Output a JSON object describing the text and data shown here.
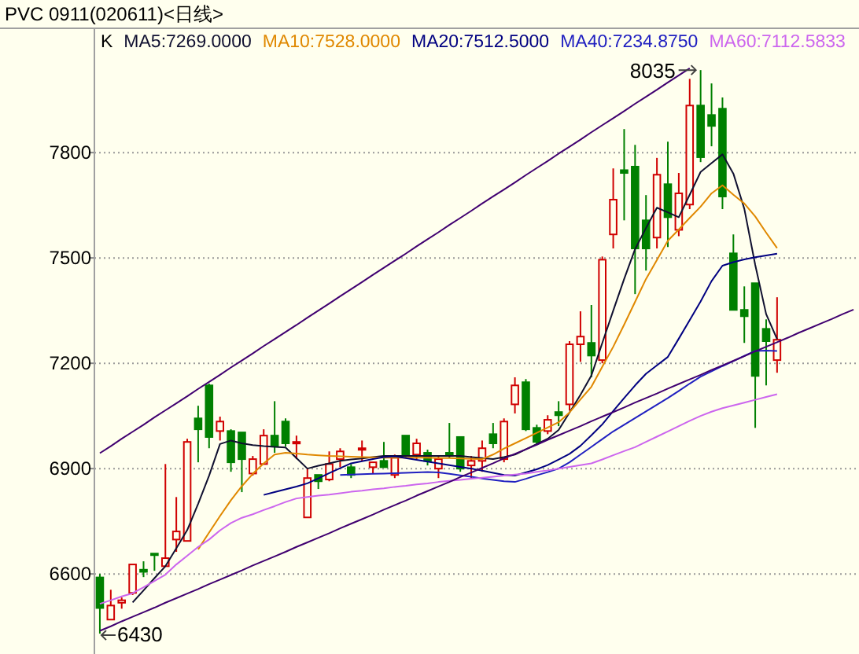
{
  "chart_data": {
    "type": "candlestick",
    "title": "PVC 0911(020611)<日线>",
    "categories": [
      null,
      null,
      null,
      null,
      null,
      null,
      null,
      null,
      null,
      null,
      null,
      null,
      null,
      null,
      null,
      null,
      null,
      null,
      null,
      null,
      null,
      null,
      null,
      null,
      null,
      null,
      null,
      null,
      null,
      null,
      null,
      null,
      null,
      null,
      null,
      null,
      null,
      null,
      null,
      null,
      null,
      null,
      null,
      null,
      null,
      null,
      null,
      null,
      null,
      null,
      null,
      null,
      null,
      null,
      null,
      null,
      null,
      null,
      null,
      null,
      null,
      null,
      null,
      null,
      null,
      null,
      null,
      null,
      null,
      null
    ],
    "series": [
      {
        "ohlc": [
          [
            6590,
            6600,
            6430,
            6503
          ],
          [
            6470,
            6555,
            6466,
            6510
          ],
          [
            6518,
            6533,
            6501,
            6525
          ],
          [
            6546,
            6627,
            6540,
            6627
          ],
          [
            6612,
            6636,
            6591,
            6606
          ],
          [
            6658,
            6660,
            6609,
            6654
          ],
          [
            6622,
            6913,
            6618,
            6645
          ],
          [
            6698,
            6819,
            6663,
            6721
          ],
          [
            6694,
            6985,
            6690,
            6976
          ],
          [
            7043,
            7079,
            6918,
            7012
          ],
          [
            7137,
            7142,
            6958,
            6990
          ],
          [
            7007,
            7048,
            6980,
            7034
          ],
          [
            7007,
            7012,
            6891,
            6918
          ],
          [
            7003,
            7003,
            6833,
            6927
          ],
          [
            6886,
            6936,
            6880,
            6927
          ],
          [
            6913,
            7012,
            6909,
            6994
          ],
          [
            6994,
            7092,
            6945,
            6963
          ],
          [
            7034,
            7043,
            6963,
            6972
          ],
          [
            6972,
            6994,
            6927,
            6976
          ],
          [
            6761,
            6900,
            6761,
            6873
          ],
          [
            6882,
            6886,
            6842,
            6864
          ],
          [
            6869,
            6949,
            6864,
            6913
          ],
          [
            6927,
            6958,
            6904,
            6949
          ],
          [
            6904,
            6913,
            6873,
            6882
          ],
          [
            6954,
            6980,
            6922,
            6958
          ],
          [
            6904,
            6922,
            6886,
            6918
          ],
          [
            6922,
            6976,
            6900,
            6904
          ],
          [
            6882,
            6940,
            6873,
            6931
          ],
          [
            6994,
            6998,
            6931,
            6940
          ],
          [
            6940,
            6985,
            6927,
            6972
          ],
          [
            6945,
            6954,
            6909,
            6922
          ],
          [
            6900,
            6936,
            6873,
            6927
          ],
          [
            6945,
            7030,
            6931,
            6936
          ],
          [
            6990,
            6990,
            6891,
            6900
          ],
          [
            6909,
            6936,
            6873,
            6922
          ],
          [
            6922,
            6980,
            6891,
            6958
          ],
          [
            6998,
            7030,
            6958,
            6972
          ],
          [
            6927,
            7043,
            6918,
            7034
          ],
          [
            7083,
            7160,
            7057,
            7137
          ],
          [
            7146,
            7155,
            7007,
            7012
          ],
          [
            7016,
            7025,
            6967,
            6976
          ],
          [
            7007,
            7052,
            6998,
            7039
          ],
          [
            7061,
            7092,
            7021,
            7052
          ],
          [
            7083,
            7263,
            7065,
            7254
          ],
          [
            7254,
            7348,
            7204,
            7276
          ],
          [
            7258,
            7366,
            7160,
            7222
          ],
          [
            7209,
            7504,
            7200,
            7495
          ],
          [
            7567,
            7755,
            7527,
            7666
          ],
          [
            7750,
            7867,
            7607,
            7742
          ],
          [
            7760,
            7822,
            7397,
            7527
          ],
          [
            7607,
            7679,
            7464,
            7527
          ],
          [
            7558,
            7785,
            7527,
            7737
          ],
          [
            7710,
            7831,
            7531,
            7616
          ],
          [
            7580,
            7742,
            7562,
            7684
          ],
          [
            7652,
            8010,
            7639,
            7934
          ],
          [
            7934,
            8035,
            7773,
            7787
          ],
          [
            7907,
            7997,
            7818,
            7876
          ],
          [
            7925,
            7957,
            7639,
            7675
          ],
          [
            7513,
            7567,
            7348,
            7352
          ],
          [
            7352,
            7419,
            7258,
            7334
          ],
          [
            7428,
            7428,
            7016,
            7164
          ],
          [
            7298,
            7325,
            7137,
            7263
          ],
          [
            7209,
            7388,
            7173,
            7267
          ],
          null,
          null,
          null,
          null,
          null,
          null,
          null
        ],
        "colors": [
          "#008000",
          "#d00000",
          "#d00000",
          "#d00000",
          "#008000",
          "#008000",
          "#d00000",
          "#d00000",
          "#d00000",
          "#008000",
          "#008000",
          "#d00000",
          "#008000",
          "#008000",
          "#d00000",
          "#d00000",
          "#008000",
          "#008000",
          "#d00000",
          "#d00000",
          "#008000",
          "#d00000",
          "#d00000",
          "#008000",
          "#d00000",
          "#d00000",
          "#008000",
          "#d00000",
          "#008000",
          "#d00000",
          "#008000",
          "#d00000",
          "#008000",
          "#008000",
          "#d00000",
          "#d00000",
          "#008000",
          "#d00000",
          "#d00000",
          "#008000",
          "#008000",
          "#d00000",
          "#008000",
          "#d00000",
          "#d00000",
          "#008000",
          "#d00000",
          "#d00000",
          "#008000",
          "#008000",
          "#008000",
          "#d00000",
          "#008000",
          "#d00000",
          "#d00000",
          "#008000",
          "#008000",
          "#008000",
          "#008000",
          "#008000",
          "#008000",
          "#008000",
          "#d00000",
          null,
          null,
          null,
          null,
          null,
          null,
          null
        ]
      },
      {
        "name": "MA5:7269.0000",
        "type": "line",
        "color": "#101030",
        "values": [
          null,
          null,
          null,
          6519,
          6553,
          6588,
          6622,
          6673,
          6725,
          6800,
          6880,
          6970,
          6980,
          6972,
          6967,
          6964,
          6962,
          6960,
          6930,
          6900,
          6908,
          6915,
          6922,
          6926,
          6929,
          6933,
          6936,
          6936,
          6936,
          6936,
          6936,
          6936,
          6936,
          6936,
          6933,
          6930,
          6927,
          6933,
          6940,
          6955,
          6970,
          6985,
          7010,
          7060,
          7110,
          7165,
          7258,
          7350,
          7440,
          7525,
          7585,
          7643,
          7630,
          7616,
          7680,
          7745,
          7770,
          7795,
          7740,
          7640,
          7480,
          7340,
          7269,
          null,
          null,
          null,
          null,
          null,
          null,
          null
        ]
      },
      {
        "name": "MA10:7528.0000",
        "type": "line",
        "color": "#e08800",
        "values": [
          null,
          null,
          null,
          null,
          null,
          null,
          null,
          null,
          null,
          6670,
          6718,
          6765,
          6810,
          6850,
          6885,
          6915,
          6940,
          6945,
          6943,
          6940,
          6938,
          6936,
          6935,
          6934,
          6933,
          6932,
          6931,
          6931,
          6931,
          6931,
          6931,
          6930,
          6930,
          6929,
          6928,
          6927,
          6940,
          6957,
          6972,
          6987,
          7002,
          7017,
          7032,
          7060,
          7097,
          7133,
          7190,
          7247,
          7310,
          7375,
          7440,
          7494,
          7549,
          7581,
          7614,
          7646,
          7684,
          7707,
          7680,
          7655,
          7618,
          7572,
          7528,
          null,
          null,
          null,
          null,
          null,
          null,
          null
        ]
      },
      {
        "name": "MA20:7512.5000",
        "type": "line",
        "color": "#000080",
        "values": [
          null,
          null,
          null,
          null,
          null,
          null,
          null,
          null,
          null,
          null,
          null,
          null,
          null,
          null,
          null,
          6825,
          6833,
          6841,
          6849,
          6858,
          6872,
          6887,
          6901,
          6915,
          6921,
          6927,
          6933,
          6935,
          6930,
          6925,
          6920,
          6915,
          6910,
          6905,
          6900,
          6894,
          6888,
          6882,
          6880,
          6889,
          6898,
          6910,
          6926,
          6942,
          6965,
          6995,
          7026,
          7064,
          7101,
          7137,
          7170,
          7194,
          7218,
          7270,
          7323,
          7376,
          7434,
          7478,
          7488,
          7496,
          7502,
          7507,
          7512,
          null,
          null,
          null,
          null,
          null,
          null,
          null
        ]
      },
      {
        "name": "MA40:7234.8750",
        "type": "line",
        "color": "#2020c0",
        "values": [
          null,
          null,
          null,
          null,
          null,
          null,
          null,
          null,
          null,
          null,
          null,
          null,
          null,
          null,
          null,
          null,
          null,
          null,
          null,
          null,
          null,
          null,
          6882,
          6883,
          6884,
          6885,
          6886,
          6887,
          6888,
          6889,
          6890,
          6889,
          6885,
          6881,
          6877,
          6872,
          6868,
          6864,
          6862,
          6871,
          6881,
          6890,
          6900,
          6918,
          6940,
          6962,
          6984,
          7006,
          7025,
          7044,
          7063,
          7082,
          7101,
          7121,
          7142,
          7162,
          7177,
          7192,
          7206,
          7221,
          7235,
          7236,
          7235,
          null,
          null,
          null,
          null,
          null,
          null,
          null
        ]
      },
      {
        "name": "MA60:7112.5833",
        "type": "line",
        "color": "#cc66ee",
        "values": [
          6515,
          6525,
          6536,
          6545,
          6562,
          6580,
          6598,
          6627,
          6652,
          6677,
          6698,
          6724,
          6745,
          6760,
          6770,
          6782,
          6793,
          6805,
          6815,
          6819,
          6823,
          6826,
          6830,
          6834,
          6837,
          6841,
          6844,
          6848,
          6851,
          6855,
          6858,
          6862,
          6865,
          6868,
          6871,
          6874,
          6877,
          6880,
          6883,
          6886,
          6891,
          6895,
          6900,
          6905,
          6910,
          6915,
          6926,
          6938,
          6950,
          6961,
          6976,
          6991,
          7006,
          7021,
          7036,
          7050,
          7062,
          7072,
          7080,
          7088,
          7096,
          7104,
          7112,
          null,
          null,
          null,
          null,
          null,
          null,
          null
        ]
      },
      {
        "type": "line",
        "color": "#400070",
        "values": [
          6944,
          6964,
          6985,
          7005,
          7025,
          7046,
          7066,
          7086,
          7106,
          7127,
          7147,
          7167,
          7188,
          7208,
          7228,
          7249,
          7269,
          7289,
          7309,
          7330,
          7350,
          7370,
          7391,
          7411,
          7431,
          7452,
          7472,
          7492,
          7512,
          7533,
          7553,
          7573,
          7594,
          7614,
          7634,
          7655,
          7675,
          7695,
          7715,
          7736,
          7756,
          7776,
          7797,
          7817,
          7837,
          7858,
          7878,
          7898,
          7918,
          7939,
          7959,
          7979,
          8000,
          8020,
          8040,
          null,
          null,
          null,
          null,
          null,
          null,
          null,
          null,
          null,
          null,
          null,
          null,
          null,
          null,
          null
        ]
      },
      {
        "type": "line",
        "color": "#400070",
        "values": [
          6438,
          6451,
          6465,
          6478,
          6491,
          6504,
          6518,
          6531,
          6544,
          6557,
          6571,
          6584,
          6597,
          6610,
          6624,
          6637,
          6650,
          6663,
          6677,
          6690,
          6703,
          6716,
          6730,
          6743,
          6756,
          6769,
          6783,
          6796,
          6809,
          6823,
          6836,
          6849,
          6862,
          6876,
          6889,
          6902,
          6915,
          6929,
          6942,
          6955,
          6968,
          6982,
          6995,
          7008,
          7021,
          7035,
          7048,
          7061,
          7074,
          7088,
          7101,
          7114,
          7128,
          7141,
          7154,
          7167,
          7181,
          7194,
          7207,
          7220,
          7234,
          7247,
          7260,
          7273,
          7287,
          7300,
          7313,
          7326,
          7340,
          7353
        ]
      }
    ],
    "ylim": [
      6372,
      8154
    ],
    "yticks": [
      6600,
      6900,
      7200,
      7500,
      7800
    ],
    "grid": "y",
    "legend": "top left",
    "tick_labels": "y",
    "annotations": [
      "8035",
      "6430",
      "K"
    ]
  }
}
